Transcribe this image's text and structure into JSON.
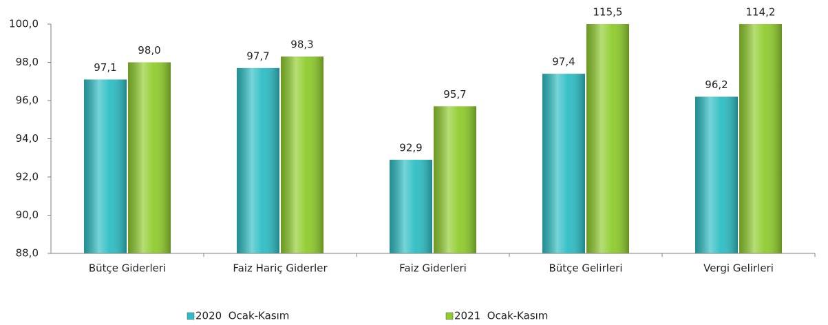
{
  "chart_data": {
    "type": "bar",
    "categories": [
      "Bütçe Giderleri",
      "Faiz Hariç Giderler",
      "Faiz Giderleri",
      "Bütçe Gelirleri",
      "Vergi Gelirleri"
    ],
    "series": [
      {
        "name": "2020  Ocak-Kasım",
        "color": "#2cbec4",
        "values": [
          97.1,
          97.7,
          92.9,
          97.4,
          96.2
        ],
        "value_labels": [
          "97,1",
          "97,7",
          "92,9",
          "97,4",
          "96,2"
        ]
      },
      {
        "name": "2021  Ocak-Kasım",
        "color": "#8fcc2c",
        "values": [
          98.0,
          98.3,
          95.7,
          115.5,
          114.2
        ],
        "value_labels": [
          "98,0",
          "98,3",
          "95,7",
          "115,5",
          "114,2"
        ]
      }
    ],
    "ylim": [
      88,
      100
    ],
    "yticks": [
      {
        "value": 88,
        "label": "88,0"
      },
      {
        "value": 90,
        "label": "90,0"
      },
      {
        "value": 92,
        "label": "92,0"
      },
      {
        "value": 94,
        "label": "94,0"
      },
      {
        "value": 96,
        "label": "96,0"
      },
      {
        "value": 98,
        "label": "98,0"
      },
      {
        "value": 100,
        "label": "100,0"
      }
    ],
    "grid": false,
    "legend": "bottom"
  }
}
